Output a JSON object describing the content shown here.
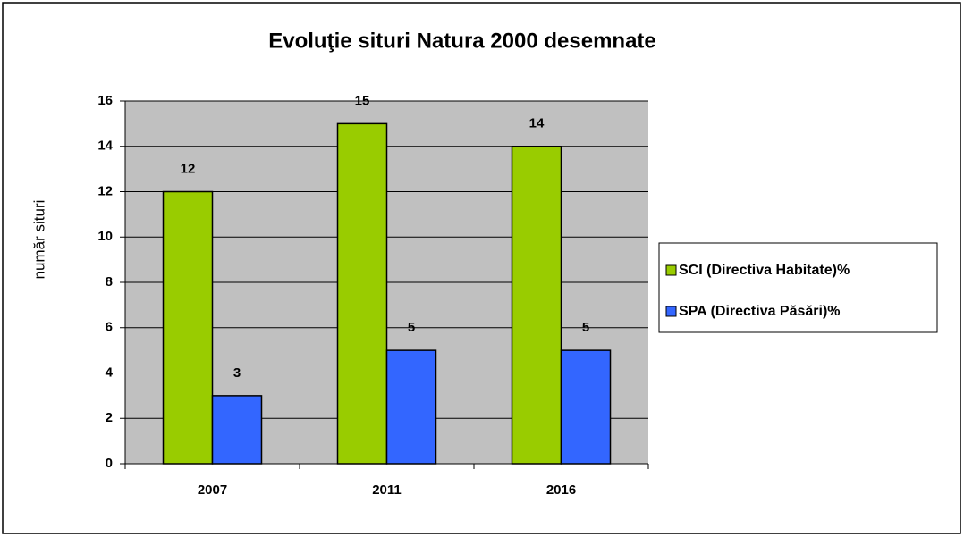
{
  "chart_data": {
    "type": "bar",
    "title": "Evoluţie situri Natura 2000 desemnate",
    "y_label": "număr situri",
    "categories": [
      "2007",
      "2011",
      "2016"
    ],
    "series": [
      {
        "name": "SCI (Directiva Habitate)%",
        "color": "#99cc00",
        "values": [
          12,
          15,
          14
        ]
      },
      {
        "name": "SPA (Directiva Păsări)%",
        "color": "#3366ff",
        "values": [
          3,
          5,
          5
        ]
      }
    ],
    "ylim": [
      0,
      16
    ],
    "yticks": [
      0,
      2,
      4,
      6,
      8,
      10,
      12,
      14,
      16
    ],
    "grid": true,
    "legend": "right"
  }
}
